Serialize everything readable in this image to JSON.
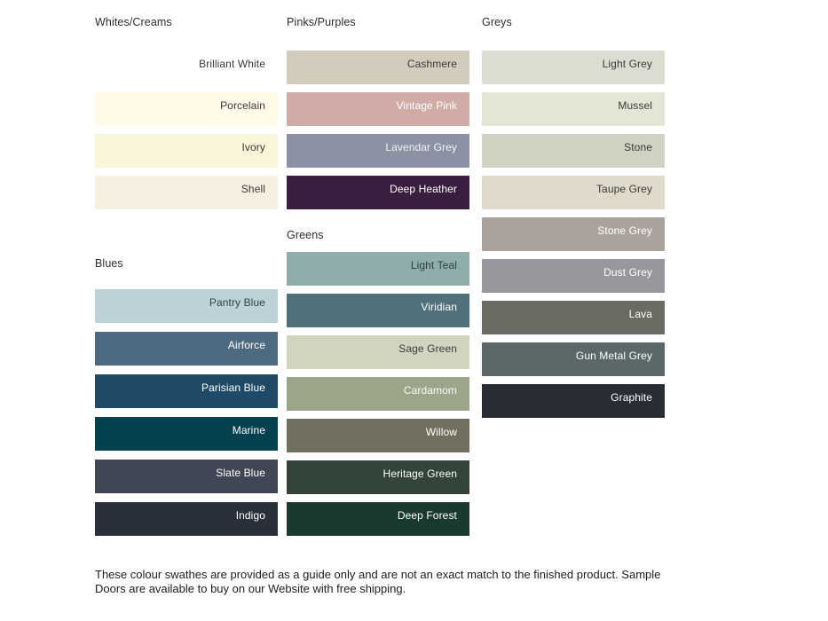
{
  "page": {
    "background": "#ffffff",
    "footer": {
      "line1": "These colour swathes are provided as a guide only and are not an exact match to the finished product.  Sample",
      "line2": "Doors are available to buy on our Website with free shipping."
    }
  },
  "sections": [
    {
      "id": "whites-creams",
      "title": "Whites/Creams",
      "swatches": [
        {
          "name": "Brilliant White",
          "color": "#ffffff",
          "text_color": "#3a3a3a"
        },
        {
          "name": "Porcelain",
          "color": "#fffbe8",
          "text_color": "#3a3a3a"
        },
        {
          "name": "Ivory",
          "color": "#faf5d8",
          "text_color": "#3a3a3a"
        },
        {
          "name": "Shell",
          "color": "#f6eedf",
          "text_color": "#3a3a3a"
        }
      ]
    },
    {
      "id": "blues",
      "title": "Blues",
      "swatches": [
        {
          "name": "Pantry Blue",
          "color": "#bdd1d8",
          "text_color": "#33414b"
        },
        {
          "name": "Airforce",
          "color": "#4d6a81",
          "text_color": "#ffffff"
        },
        {
          "name": "Parisian Blue",
          "color": "#1e4a68",
          "text_color": "#ffffff"
        },
        {
          "name": "Marine",
          "color": "#04404f",
          "text_color": "#ffffff"
        },
        {
          "name": "Slate Blue",
          "color": "#404653",
          "text_color": "#ffffff"
        },
        {
          "name": "Indigo",
          "color": "#2a303b",
          "text_color": "#ffffff"
        }
      ]
    },
    {
      "id": "pinks-purples",
      "title": "Pinks/Purples",
      "swatches": [
        {
          "name": "Cashmere",
          "color": "#d2ccbd",
          "text_color": "#3a3a3a"
        },
        {
          "name": "Vintage Pink",
          "color": "#d1aba6",
          "text_color": "#ffffff"
        },
        {
          "name": "Lavendar Grey",
          "color": "#8c92a4",
          "text_color": "#f2f3f6"
        },
        {
          "name": "Deep Heather",
          "color": "#3a1e40",
          "text_color": "#ffffff"
        }
      ]
    },
    {
      "id": "greens",
      "title": "Greens",
      "swatches": [
        {
          "name": "Light Teal",
          "color": "#8fadaa",
          "text_color": "#313d3d"
        },
        {
          "name": "Viridian",
          "color": "#51707a",
          "text_color": "#ffffff"
        },
        {
          "name": "Sage Green",
          "color": "#d1d5c0",
          "text_color": "#3a3a3a"
        },
        {
          "name": "Cardamom",
          "color": "#9ca58a",
          "text_color": "#fafaf5"
        },
        {
          "name": "Willow",
          "color": "#716f5e",
          "text_color": "#ffffff"
        },
        {
          "name": "Heritage Green",
          "color": "#33443a",
          "text_color": "#ffffff"
        },
        {
          "name": "Deep Forest",
          "color": "#193931",
          "text_color": "#ffffff"
        }
      ]
    },
    {
      "id": "greys",
      "title": "Greys",
      "swatches": [
        {
          "name": "Light Grey",
          "color": "#dcddd0",
          "text_color": "#3a3a3a"
        },
        {
          "name": "Mussel",
          "color": "#e4e5d4",
          "text_color": "#3a3a3a"
        },
        {
          "name": "Stone",
          "color": "#d1d2c2",
          "text_color": "#3a3a3a"
        },
        {
          "name": "Taupe Grey",
          "color": "#e0dacb",
          "text_color": "#3a3a3a"
        },
        {
          "name": "Stone Grey",
          "color": "#aaa39b",
          "text_color": "#ffffff"
        },
        {
          "name": "Dust Grey",
          "color": "#97979d",
          "text_color": "#ffffff"
        },
        {
          "name": "Lava",
          "color": "#6c6b61",
          "text_color": "#ffffff"
        },
        {
          "name": "Gun Metal Grey",
          "color": "#5a6867",
          "text_color": "#ffffff"
        },
        {
          "name": "Graphite",
          "color": "#282d33",
          "text_color": "#ffffff"
        }
      ]
    }
  ]
}
